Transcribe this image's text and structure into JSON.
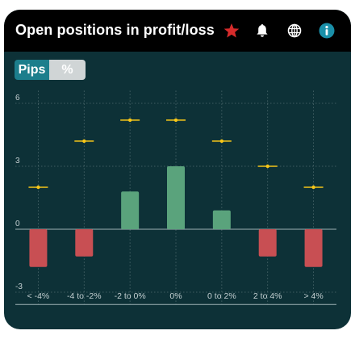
{
  "header": {
    "title": "Open positions in profit/loss",
    "icons": [
      "star-icon",
      "bell-icon",
      "globe-icon",
      "info-icon"
    ]
  },
  "toggle": {
    "options": [
      "Pips",
      "%"
    ],
    "selected": "Pips"
  },
  "colors": {
    "background": "#0d3137",
    "header": "#000000",
    "star": "#d62b2b",
    "info": "#1a8fa8",
    "positive_bar": "#5aa37c",
    "negative_bar": "#c84f53",
    "marker": "#f5c518",
    "toggle_active": "#1c7e8c",
    "toggle_inactive": "#d0d5d6"
  },
  "chart_data": {
    "type": "bar",
    "categories": [
      "< -4%",
      "-4 to -2%",
      "-2 to 0%",
      "0%",
      "0 to 2%",
      "2 to 4%",
      "> 4%"
    ],
    "values": [
      -1.8,
      -1.3,
      1.8,
      3.0,
      0.9,
      -1.3,
      -1.8
    ],
    "markers": [
      2.0,
      4.2,
      5.2,
      5.2,
      4.2,
      3.0,
      2.0
    ],
    "yticks": [
      -3,
      0,
      3,
      6
    ],
    "ylim": [
      -3.2,
      6.6
    ],
    "grid": true
  }
}
